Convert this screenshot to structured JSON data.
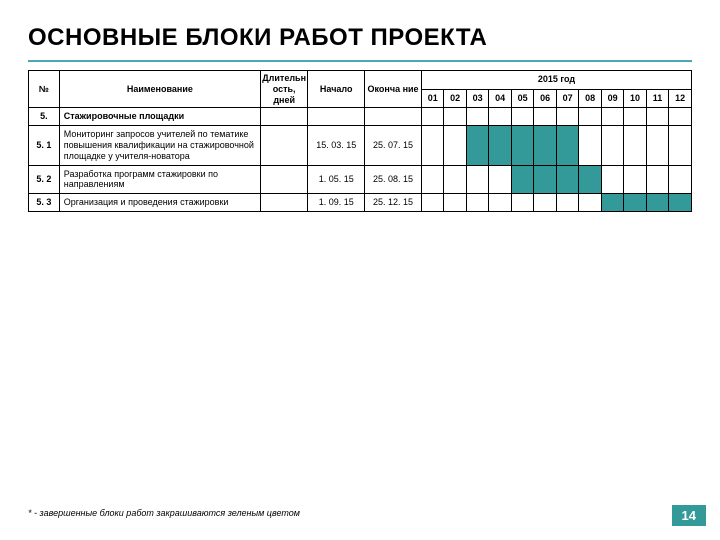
{
  "title": "ОСНОВНЫЕ БЛОКИ РАБОТ ПРОЕКТА",
  "year_header": "2015 год",
  "columns": {
    "num": "№",
    "name": "Наименование",
    "duration": "Длительн ость, дней",
    "start": "Начало",
    "end": "Оконча ние"
  },
  "months": [
    "01",
    "02",
    "03",
    "04",
    "05",
    "06",
    "07",
    "08",
    "09",
    "10",
    "11",
    "12"
  ],
  "rows": [
    {
      "num": "5.",
      "name": "Стажировочные площадки",
      "duration": "",
      "start": "",
      "end": "",
      "bar_start": 0,
      "bar_end": -1,
      "section": true
    },
    {
      "num": "5. 1",
      "name": "Мониторинг запросов учителей по тематике повышения квалификации на стажировочной площадке у учителя-новатора",
      "duration": "",
      "start": "15. 03. 15",
      "end": "25. 07. 15",
      "bar_start": 3,
      "bar_end": 7,
      "section": false
    },
    {
      "num": "5. 2",
      "name": "Разработка программ стажировки по направлениям",
      "duration": "",
      "start": "1. 05. 15",
      "end": "25. 08. 15",
      "bar_start": 5,
      "bar_end": 8,
      "section": false
    },
    {
      "num": "5. 3",
      "name": "Организация и проведения стажировки",
      "duration": "",
      "start": "1. 09. 15",
      "end": "25. 12. 15",
      "bar_start": 9,
      "bar_end": 12,
      "section": false
    }
  ],
  "footnote": "* - завершенные блоки работ закрашиваются зеленым цветом",
  "page_number": "14",
  "colors": {
    "accent": "#339999",
    "underline": "#4aa8b8",
    "border": "#000000",
    "text": "#000000",
    "pagenum_text": "#ffffff"
  }
}
